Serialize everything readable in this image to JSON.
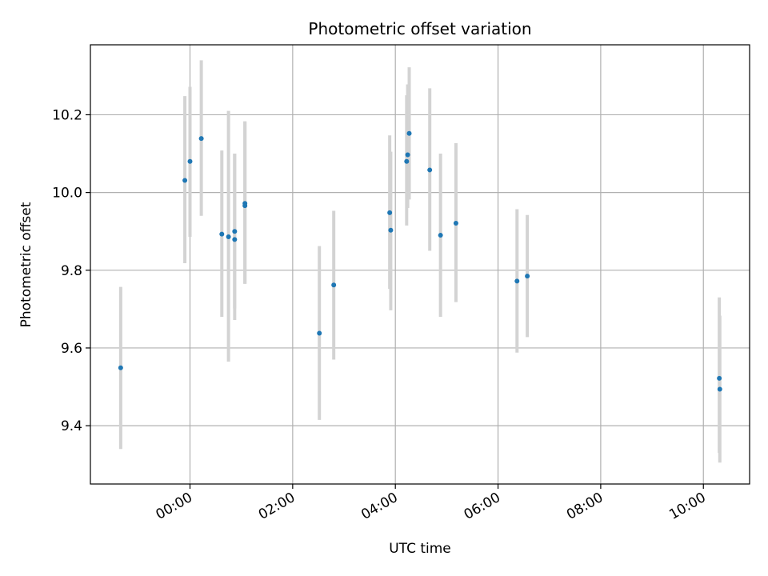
{
  "chart_data": {
    "type": "scatter",
    "title": "Photometric offset variation",
    "xlabel": "UTC time",
    "ylabel": "Photometric offset",
    "xlim": [
      "-1.94",
      "10.9"
    ],
    "ylim": [
      9.25,
      10.38
    ],
    "x_ticks": [
      {
        "value": 0,
        "label": "00:00"
      },
      {
        "value": 2,
        "label": "02:00"
      },
      {
        "value": 4,
        "label": "04:00"
      },
      {
        "value": 6,
        "label": "06:00"
      },
      {
        "value": 8,
        "label": "08:00"
      },
      {
        "value": 10,
        "label": "10:00"
      }
    ],
    "y_ticks": [
      {
        "value": 9.4,
        "label": "9.4"
      },
      {
        "value": 9.6,
        "label": "9.6"
      },
      {
        "value": 9.8,
        "label": "9.8"
      },
      {
        "value": 10.0,
        "label": "10.0"
      },
      {
        "value": 10.2,
        "label": "10.2"
      }
    ],
    "grid": true,
    "x_unit": "hours UTC",
    "points": [
      {
        "x": -1.35,
        "y": 9.549,
        "yerr_low": 9.34,
        "yerr_high": 9.757
      },
      {
        "x": -0.1,
        "y": 10.031,
        "yerr_low": 9.818,
        "yerr_high": 10.248
      },
      {
        "x": 0.0,
        "y": 10.08,
        "yerr_low": 9.886,
        "yerr_high": 10.272
      },
      {
        "x": 0.22,
        "y": 10.139,
        "yerr_low": 9.94,
        "yerr_high": 10.34
      },
      {
        "x": 0.62,
        "y": 9.893,
        "yerr_low": 9.68,
        "yerr_high": 10.108
      },
      {
        "x": 0.75,
        "y": 9.886,
        "yerr_low": 9.565,
        "yerr_high": 10.21
      },
      {
        "x": 0.87,
        "y": 9.9,
        "yerr_low": 9.672,
        "yerr_high": 10.1
      },
      {
        "x": 0.87,
        "y": 9.879,
        "yerr_low": 9.702,
        "yerr_high": 10.1
      },
      {
        "x": 1.07,
        "y": 9.972,
        "yerr_low": 9.765,
        "yerr_high": 10.183
      },
      {
        "x": 1.07,
        "y": 9.966,
        "yerr_low": 9.765,
        "yerr_high": 10.183
      },
      {
        "x": 2.52,
        "y": 9.638,
        "yerr_low": 9.415,
        "yerr_high": 9.862
      },
      {
        "x": 2.8,
        "y": 9.762,
        "yerr_low": 9.57,
        "yerr_high": 9.953
      },
      {
        "x": 3.89,
        "y": 9.948,
        "yerr_low": 9.752,
        "yerr_high": 10.147
      },
      {
        "x": 3.91,
        "y": 9.903,
        "yerr_low": 9.697,
        "yerr_high": 10.105
      },
      {
        "x": 4.22,
        "y": 10.08,
        "yerr_low": 9.915,
        "yerr_high": 10.25
      },
      {
        "x": 4.24,
        "y": 10.097,
        "yerr_low": 9.96,
        "yerr_high": 10.278
      },
      {
        "x": 4.27,
        "y": 10.152,
        "yerr_low": 9.982,
        "yerr_high": 10.322
      },
      {
        "x": 4.67,
        "y": 10.058,
        "yerr_low": 9.85,
        "yerr_high": 10.268
      },
      {
        "x": 4.88,
        "y": 9.89,
        "yerr_low": 9.68,
        "yerr_high": 10.1
      },
      {
        "x": 5.18,
        "y": 9.921,
        "yerr_low": 9.718,
        "yerr_high": 10.127
      },
      {
        "x": 6.37,
        "y": 9.772,
        "yerr_low": 9.588,
        "yerr_high": 9.957
      },
      {
        "x": 6.57,
        "y": 9.785,
        "yerr_low": 9.628,
        "yerr_high": 9.942
      },
      {
        "x": 10.31,
        "y": 9.522,
        "yerr_low": 9.33,
        "yerr_high": 9.73
      },
      {
        "x": 10.32,
        "y": 9.494,
        "yerr_low": 9.305,
        "yerr_high": 9.683
      }
    ],
    "colors": {
      "marker": "#1f77b4",
      "errorbar": "#d3d3d3",
      "grid": "#b0b0b0",
      "axes": "#000000"
    }
  }
}
